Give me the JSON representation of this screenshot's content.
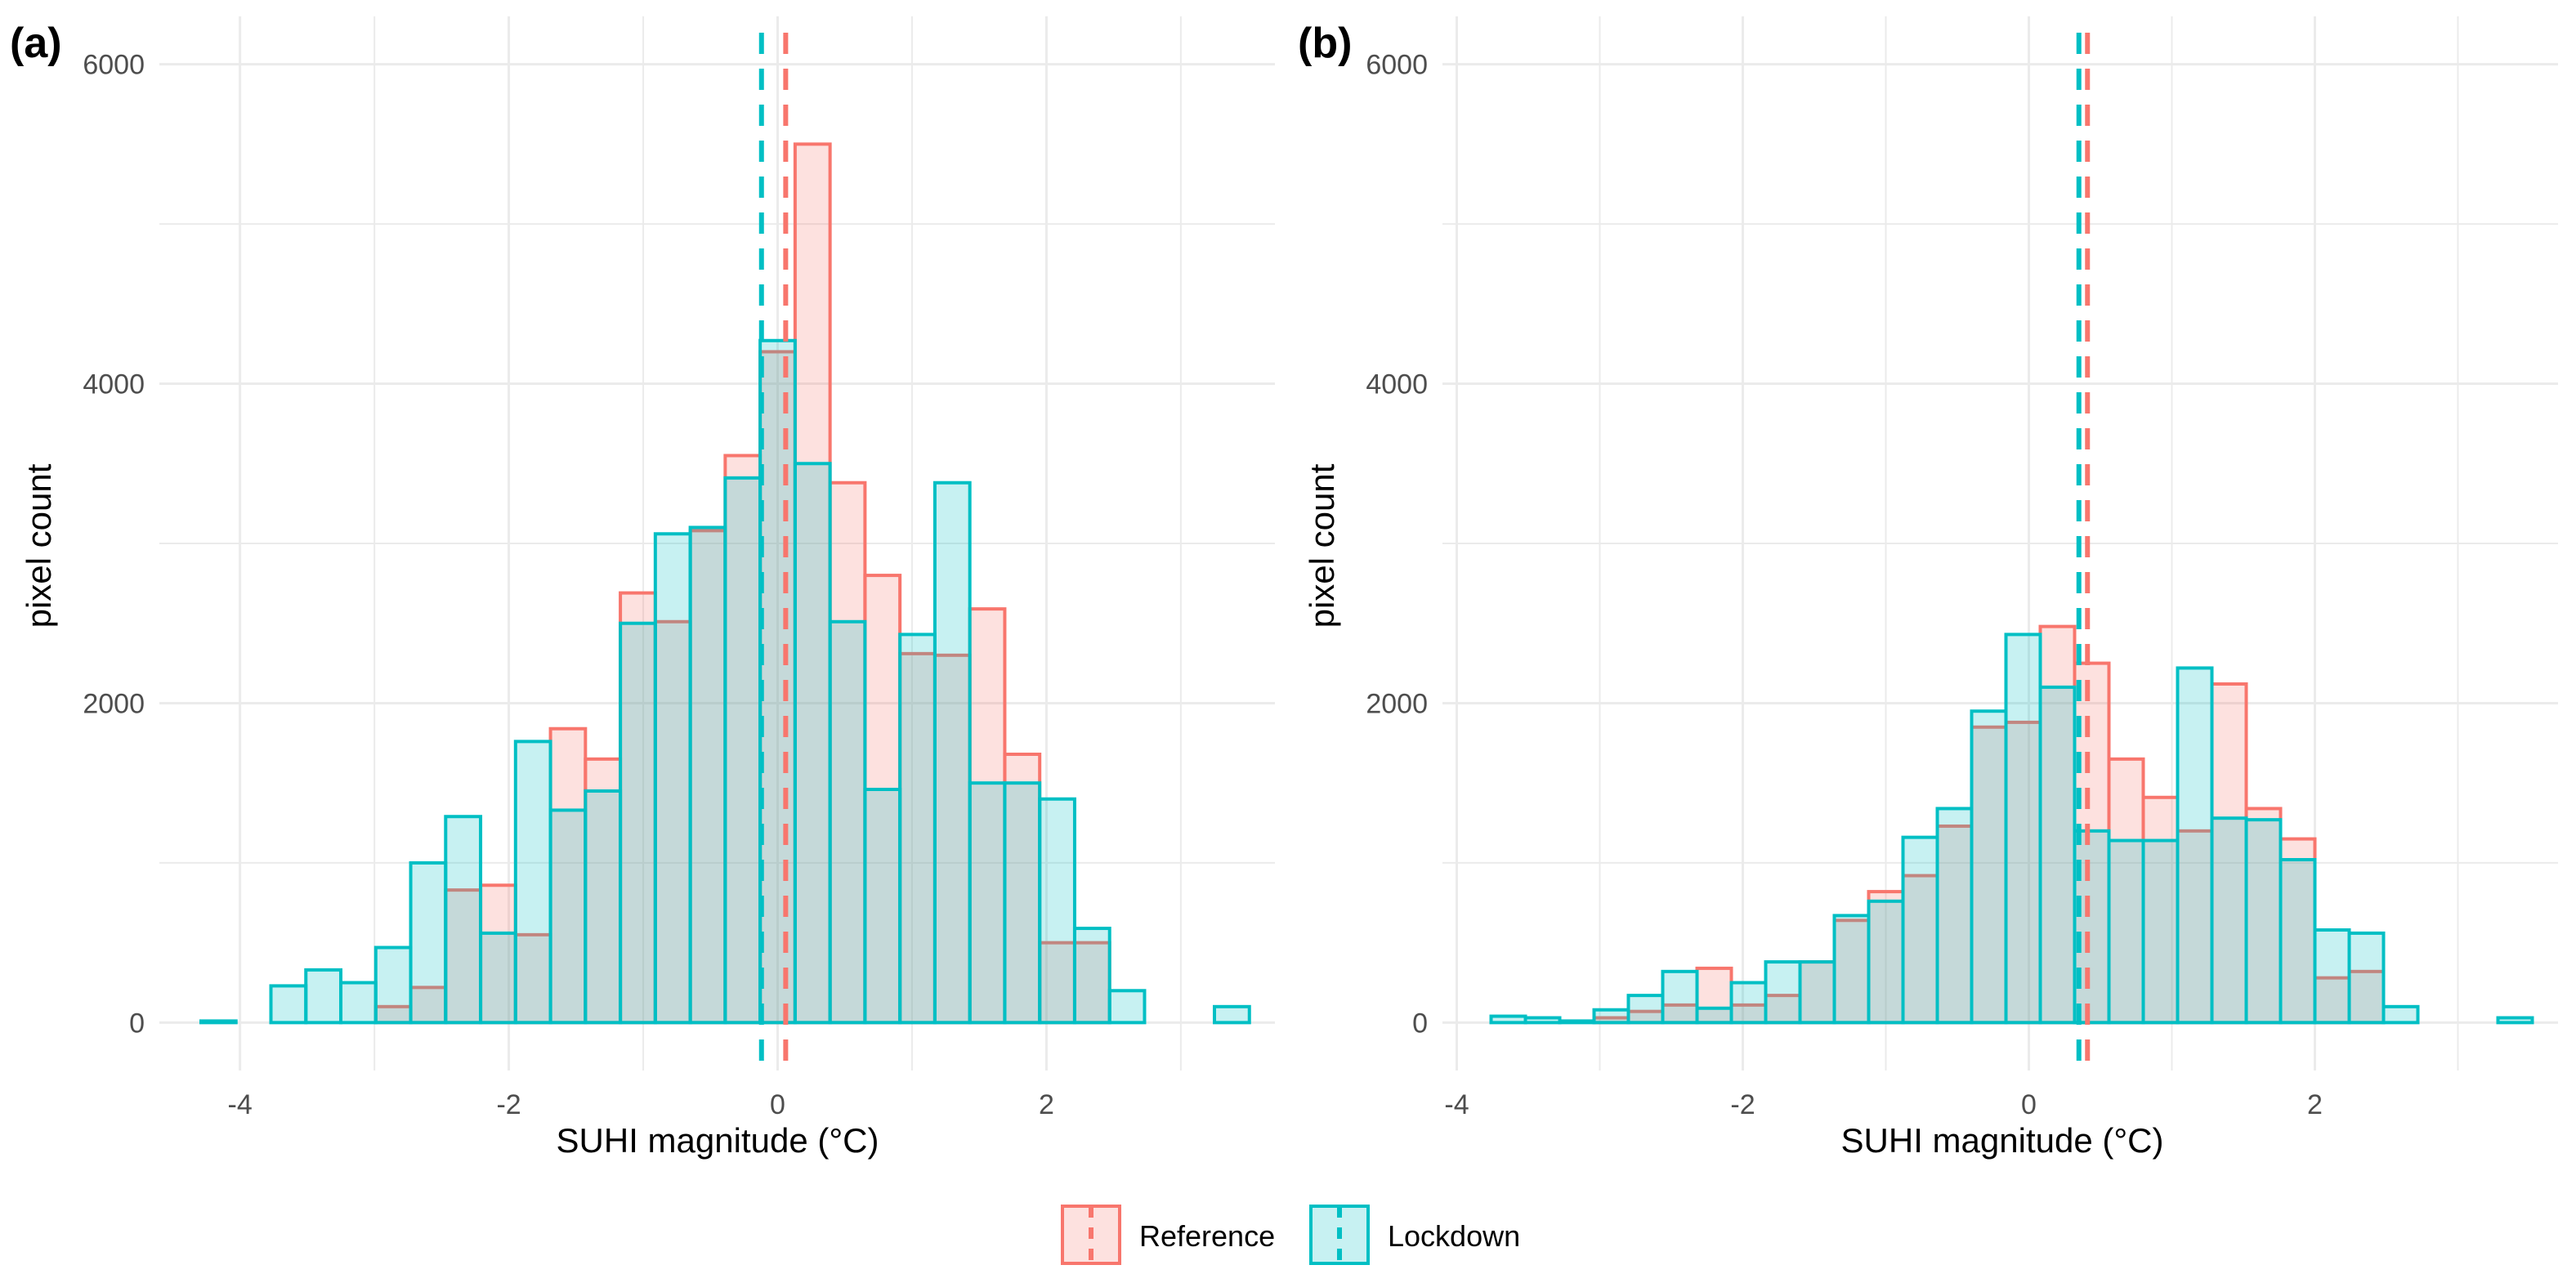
{
  "chart_data": [
    {
      "panel": "(a)",
      "type": "bar",
      "xlabel": "SUHI magnitude (°C)",
      "ylabel": "pixel count",
      "xlim": [
        -4.6,
        3.7
      ],
      "ylim": [
        -300,
        6300
      ],
      "xticks": [
        -4,
        -2,
        0,
        2
      ],
      "yticks": [
        0,
        2000,
        4000,
        6000
      ],
      "grid": true,
      "bin_width": 0.26,
      "series": [
        {
          "name": "Reference",
          "color": "#F8766D",
          "fill": "rgba(248,118,109,0.22)",
          "mean": 0.06,
          "bins": [
            {
              "x": -2.86,
              "value": 100
            },
            {
              "x": -2.6,
              "value": 220
            },
            {
              "x": -2.34,
              "value": 830
            },
            {
              "x": -2.08,
              "value": 860
            },
            {
              "x": -1.82,
              "value": 550
            },
            {
              "x": -1.56,
              "value": 1840
            },
            {
              "x": -1.3,
              "value": 1650
            },
            {
              "x": -1.04,
              "value": 2690
            },
            {
              "x": -0.78,
              "value": 2510
            },
            {
              "x": -0.52,
              "value": 3080
            },
            {
              "x": -0.26,
              "value": 3550
            },
            {
              "x": 0.0,
              "value": 4200
            },
            {
              "x": 0.26,
              "value": 5500
            },
            {
              "x": 0.52,
              "value": 3380
            },
            {
              "x": 0.78,
              "value": 2800
            },
            {
              "x": 1.04,
              "value": 2310
            },
            {
              "x": 1.3,
              "value": 2300
            },
            {
              "x": 1.56,
              "value": 2590
            },
            {
              "x": 1.82,
              "value": 1680
            },
            {
              "x": 2.08,
              "value": 500
            },
            {
              "x": 2.34,
              "value": 500
            }
          ]
        },
        {
          "name": "Lockdown",
          "color": "#00BFC4",
          "fill": "rgba(0,191,196,0.22)",
          "mean": -0.12,
          "bins": [
            {
              "x": -4.16,
              "value": 10
            },
            {
              "x": -3.64,
              "value": 230
            },
            {
              "x": -3.38,
              "value": 330
            },
            {
              "x": -3.12,
              "value": 250
            },
            {
              "x": -2.86,
              "value": 470
            },
            {
              "x": -2.6,
              "value": 1000
            },
            {
              "x": -2.34,
              "value": 1290
            },
            {
              "x": -2.08,
              "value": 560
            },
            {
              "x": -1.82,
              "value": 1760
            },
            {
              "x": -1.56,
              "value": 1330
            },
            {
              "x": -1.3,
              "value": 1450
            },
            {
              "x": -1.04,
              "value": 2500
            },
            {
              "x": -0.78,
              "value": 3060
            },
            {
              "x": -0.52,
              "value": 3100
            },
            {
              "x": -0.26,
              "value": 3410
            },
            {
              "x": 0.0,
              "value": 4270
            },
            {
              "x": 0.26,
              "value": 3500
            },
            {
              "x": 0.52,
              "value": 2510
            },
            {
              "x": 0.78,
              "value": 1460
            },
            {
              "x": 1.04,
              "value": 2430
            },
            {
              "x": 1.3,
              "value": 3380
            },
            {
              "x": 1.56,
              "value": 1500
            },
            {
              "x": 1.82,
              "value": 1500
            },
            {
              "x": 2.08,
              "value": 1400
            },
            {
              "x": 2.34,
              "value": 590
            },
            {
              "x": 2.6,
              "value": 200
            },
            {
              "x": 3.38,
              "value": 100
            }
          ]
        }
      ]
    },
    {
      "panel": "(b)",
      "type": "bar",
      "xlabel": "SUHI magnitude (°C)",
      "ylabel": "pixel count",
      "xlim": [
        -4.1,
        3.7
      ],
      "ylim": [
        -300,
        6300
      ],
      "xticks": [
        -4,
        -2,
        0,
        2
      ],
      "yticks": [
        0,
        2000,
        4000,
        6000
      ],
      "grid": true,
      "bin_width": 0.24,
      "series": [
        {
          "name": "Reference",
          "color": "#F8766D",
          "fill": "rgba(248,118,109,0.22)",
          "mean": 0.41,
          "bins": [
            {
              "x": -2.92,
              "value": 30
            },
            {
              "x": -2.68,
              "value": 70
            },
            {
              "x": -2.44,
              "value": 110
            },
            {
              "x": -2.2,
              "value": 340
            },
            {
              "x": -1.96,
              "value": 110
            },
            {
              "x": -1.72,
              "value": 170
            },
            {
              "x": -1.48,
              "value": 380
            },
            {
              "x": -1.24,
              "value": 640
            },
            {
              "x": -1.0,
              "value": 820
            },
            {
              "x": -0.76,
              "value": 920
            },
            {
              "x": -0.52,
              "value": 1230
            },
            {
              "x": -0.28,
              "value": 1850
            },
            {
              "x": -0.04,
              "value": 1880
            },
            {
              "x": 0.2,
              "value": 2480
            },
            {
              "x": 0.44,
              "value": 2250
            },
            {
              "x": 0.68,
              "value": 1650
            },
            {
              "x": 0.92,
              "value": 1410
            },
            {
              "x": 1.16,
              "value": 1200
            },
            {
              "x": 1.4,
              "value": 2120
            },
            {
              "x": 1.64,
              "value": 1340
            },
            {
              "x": 1.88,
              "value": 1150
            },
            {
              "x": 2.12,
              "value": 280
            },
            {
              "x": 2.36,
              "value": 320
            }
          ]
        },
        {
          "name": "Lockdown",
          "color": "#00BFC4",
          "fill": "rgba(0,191,196,0.22)",
          "mean": 0.35,
          "bins": [
            {
              "x": -3.64,
              "value": 40
            },
            {
              "x": -3.4,
              "value": 30
            },
            {
              "x": -3.16,
              "value": 10
            },
            {
              "x": -2.92,
              "value": 80
            },
            {
              "x": -2.68,
              "value": 170
            },
            {
              "x": -2.44,
              "value": 320
            },
            {
              "x": -2.2,
              "value": 90
            },
            {
              "x": -1.96,
              "value": 250
            },
            {
              "x": -1.72,
              "value": 380
            },
            {
              "x": -1.48,
              "value": 380
            },
            {
              "x": -1.24,
              "value": 670
            },
            {
              "x": -1.0,
              "value": 760
            },
            {
              "x": -0.76,
              "value": 1160
            },
            {
              "x": -0.52,
              "value": 1340
            },
            {
              "x": -0.28,
              "value": 1950
            },
            {
              "x": -0.04,
              "value": 2430
            },
            {
              "x": 0.2,
              "value": 2100
            },
            {
              "x": 0.44,
              "value": 1200
            },
            {
              "x": 0.68,
              "value": 1140
            },
            {
              "x": 0.92,
              "value": 1140
            },
            {
              "x": 1.16,
              "value": 2220
            },
            {
              "x": 1.4,
              "value": 1280
            },
            {
              "x": 1.64,
              "value": 1270
            },
            {
              "x": 1.88,
              "value": 1020
            },
            {
              "x": 2.12,
              "value": 580
            },
            {
              "x": 2.36,
              "value": 560
            },
            {
              "x": 2.6,
              "value": 100
            },
            {
              "x": 3.4,
              "value": 30
            }
          ]
        }
      ]
    }
  ],
  "legend": {
    "items": [
      {
        "label": "Reference",
        "color": "#F8766D",
        "fill": "rgba(248,118,109,0.22)"
      },
      {
        "label": "Lockdown",
        "color": "#00BFC4",
        "fill": "rgba(0,191,196,0.22)"
      }
    ]
  }
}
